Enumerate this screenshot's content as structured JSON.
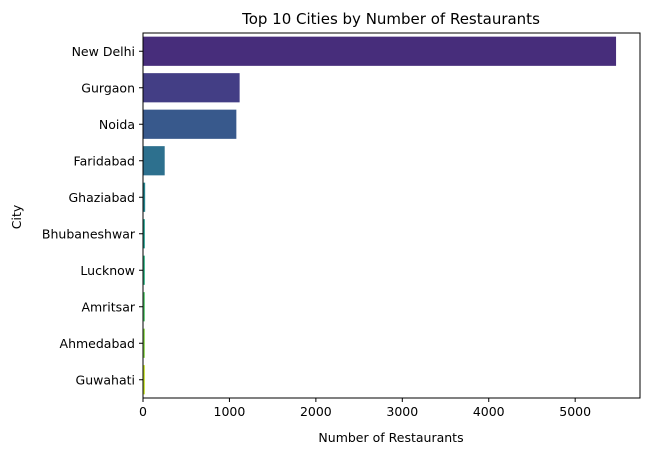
{
  "chart_data": {
    "type": "bar",
    "orientation": "horizontal",
    "title": "Top 10 Cities by Number of Restaurants",
    "xlabel": "Number of Restaurants",
    "ylabel": "City",
    "categories": [
      "New Delhi",
      "Gurgaon",
      "Noida",
      "Faridabad",
      "Ghaziabad",
      "Bhubaneshwar",
      "Lucknow",
      "Amritsar",
      "Ahmedabad",
      "Guwahati"
    ],
    "values": [
      5473,
      1118,
      1080,
      251,
      25,
      21,
      21,
      21,
      21,
      21
    ],
    "xlim": [
      0,
      5750
    ],
    "xticks": [
      0,
      1000,
      2000,
      3000,
      4000,
      5000
    ],
    "grid": false,
    "colors": [
      "#472d7b",
      "#433e85",
      "#38598c",
      "#2d708e",
      "#25858e",
      "#1e9b8a",
      "#2ab07f",
      "#52c569",
      "#86d549",
      "#c2df23"
    ]
  }
}
